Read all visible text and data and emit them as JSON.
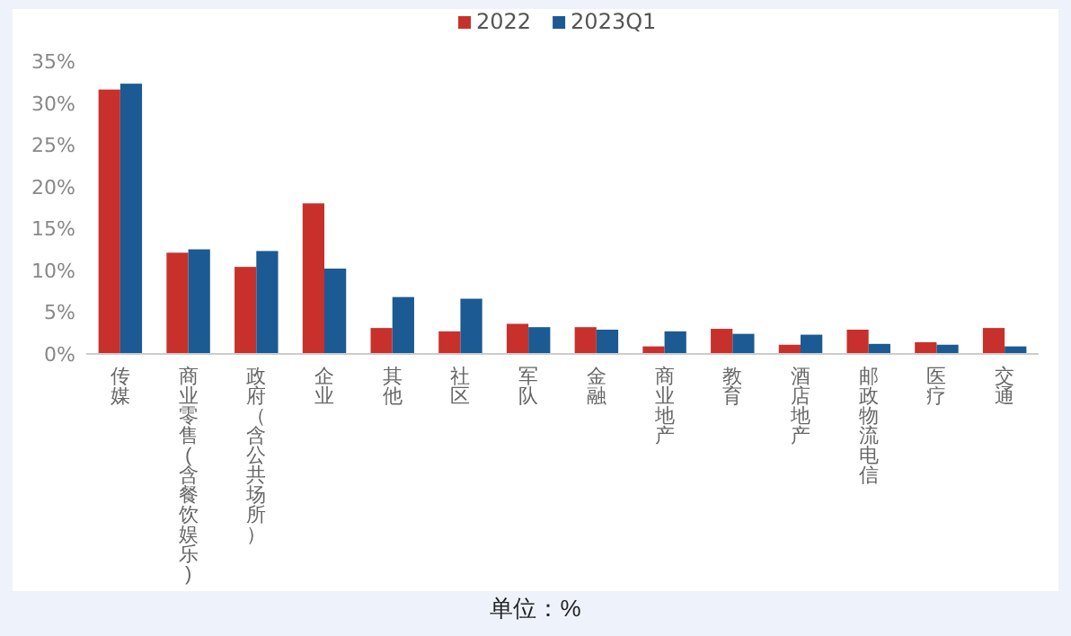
{
  "chart_data": {
    "type": "bar",
    "categories": [
      "传媒",
      "商业零售(含餐饮娱乐)",
      "政府（含公共场所）",
      "企业",
      "其他",
      "社区",
      "军队",
      "金融",
      "商业地产",
      "教育",
      "酒店地产",
      "邮政物流电信",
      "医疗",
      "交通"
    ],
    "series": [
      {
        "name": "2022",
        "color": "#c8312b",
        "values": [
          31.6,
          12.1,
          10.4,
          18.0,
          3.1,
          2.7,
          3.6,
          3.2,
          0.9,
          3.0,
          1.1,
          2.9,
          1.4,
          3.1
        ]
      },
      {
        "name": "2023Q1",
        "color": "#1b5a93",
        "values": [
          32.3,
          12.5,
          12.3,
          10.2,
          6.8,
          6.6,
          3.2,
          2.9,
          2.7,
          2.4,
          2.3,
          1.2,
          1.1,
          0.9
        ]
      }
    ],
    "ylim": [
      0,
      35
    ],
    "yticks": [
      {
        "value": 0,
        "label": "0%"
      },
      {
        "value": 5,
        "label": "5%"
      },
      {
        "value": 10,
        "label": "10%"
      },
      {
        "value": 15,
        "label": "15%"
      },
      {
        "value": 20,
        "label": "20%"
      },
      {
        "value": 25,
        "label": "25%"
      },
      {
        "value": 30,
        "label": "30%"
      },
      {
        "value": 35,
        "label": "35%"
      }
    ],
    "grid": false,
    "legend": "top",
    "annotations": [
      "单位：%"
    ]
  }
}
